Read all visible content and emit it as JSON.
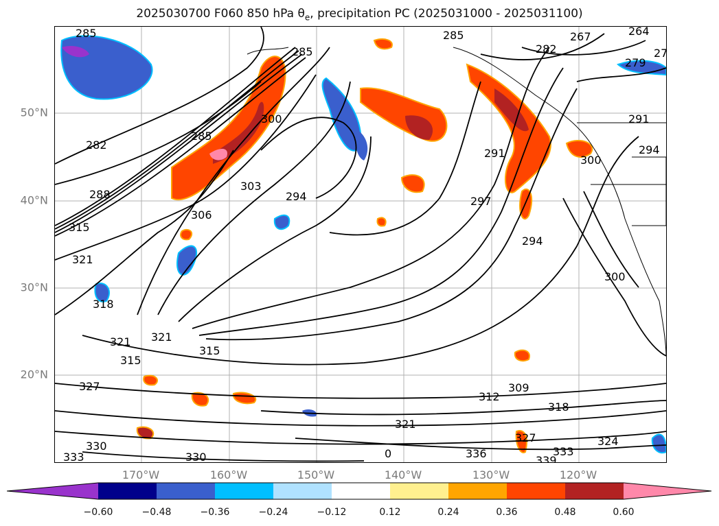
{
  "title": {
    "prefix": "2025030700 F060 850 hPa ",
    "theta": "θ",
    "theta_sub": "e",
    "suffix": ", precipitation PC (2025031000 - 2025031100)"
  },
  "map": {
    "lat_labels": [
      "50°N",
      "40°N",
      "30°N",
      "20°N"
    ],
    "lon_labels": [
      "170°W",
      "160°W",
      "150°W",
      "140°W",
      "130°W",
      "120°W"
    ],
    "contour_labels": [
      "285",
      "285",
      "285",
      "267",
      "264",
      "27",
      "282",
      "279",
      "282",
      "285",
      "288",
      "300",
      "303",
      "306",
      "315",
      "294",
      "291",
      "297",
      "294",
      "300",
      "300",
      "291",
      "294",
      "321",
      "318",
      "321",
      "321",
      "315",
      "315",
      "327",
      "309",
      "312",
      "318",
      "321",
      "327",
      "336",
      "333",
      "339",
      "324",
      "330",
      "330",
      "333",
      "0"
    ]
  },
  "colorbar": {
    "colors": [
      "#9933cc",
      "#00008b",
      "#3a5fcd",
      "#00bfff",
      "#b0e2ff",
      "#ffffff",
      "#fff08f",
      "#ffa500",
      "#ff4500",
      "#b22222",
      "#ff88aa"
    ],
    "tick_labels": [
      "−0.60",
      "−0.48",
      "−0.36",
      "−0.24",
      "−0.12",
      "0.12",
      "0.24",
      "0.36",
      "0.48",
      "0.60"
    ]
  }
}
